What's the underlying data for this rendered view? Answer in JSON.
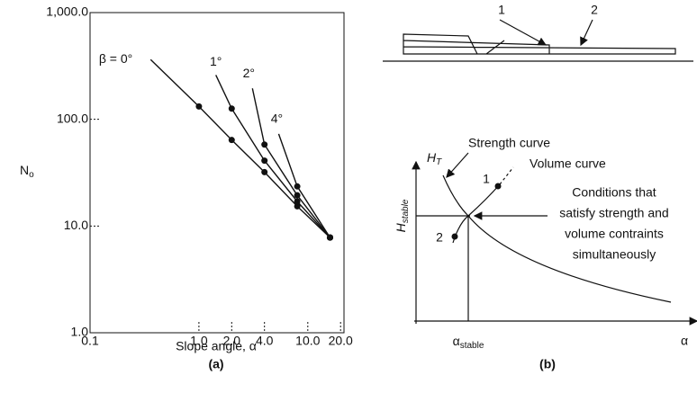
{
  "chart_data": {
    "type": "line",
    "xscale": "log",
    "yscale": "log",
    "xlabel": "Slope angle, α",
    "ylabel": {
      "main": "N",
      "sub": "o"
    },
    "panel": "(a)",
    "xlim": [
      0.1,
      21.5
    ],
    "ylim": [
      1,
      1000
    ],
    "xticks": [
      0.1,
      {
        "value": 1,
        "label": "1.0"
      },
      {
        "value": 2,
        "label": "2.0"
      },
      {
        "value": 4,
        "label": "4.0"
      },
      {
        "value": 10,
        "label": "10.0"
      },
      {
        "value": 20,
        "label": "20.0"
      }
    ],
    "yticks": [
      {
        "value": 1,
        "label": "1.0"
      },
      {
        "value": 10,
        "label": "10.0"
      },
      {
        "value": 100,
        "label": "100.0"
      },
      {
        "value": 1000,
        "label": "1,000.0"
      }
    ],
    "color": "#111111",
    "series": [
      {
        "name": "β = 0°",
        "x": [
          0.36,
          1,
          2,
          4,
          8,
          16
        ],
        "values": [
          363,
          132,
          64,
          32,
          15.3,
          7.8
        ]
      },
      {
        "name": "1°",
        "x": [
          1.43,
          2,
          4,
          8,
          16
        ],
        "values": [
          260,
          126,
          41,
          17,
          7.8
        ]
      },
      {
        "name": "2°",
        "x": [
          3.1,
          4,
          8,
          16
        ],
        "values": [
          195,
          58,
          19.4,
          7.8
        ]
      },
      {
        "name": "4°",
        "x": [
          5.4,
          8,
          16
        ],
        "values": [
          73,
          23.5,
          7.8
        ]
      }
    ]
  },
  "diagram_b": {
    "top_labels": [
      "1",
      "2"
    ],
    "strength": "Strength curve",
    "volume": "Volume curve",
    "point_labels": [
      "1",
      "2"
    ],
    "conditions": [
      "Conditions that",
      "satisfy strength and",
      "volume contraints",
      "simultaneously"
    ],
    "y_axis": {
      "main": "H",
      "sub": "T"
    },
    "y_mark": {
      "main": "H",
      "sub": "stable"
    },
    "x_mark": {
      "main": "α",
      "sub": "stable"
    },
    "x_axis": "α",
    "panel": "(b)"
  }
}
